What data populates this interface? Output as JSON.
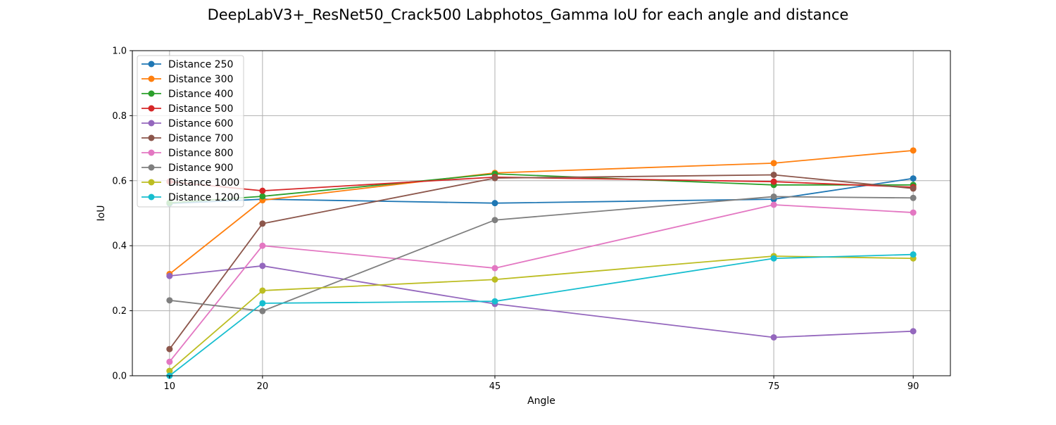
{
  "chart_data": {
    "type": "line",
    "title": "DeepLabV3+_ResNet50_Crack500 Labphotos_Gamma IoU for each angle and distance",
    "xlabel": "Angle",
    "ylabel": "IoU",
    "x": [
      10,
      20,
      45,
      75,
      90
    ],
    "xlim": [
      6,
      94
    ],
    "ylim": [
      0.0,
      1.0
    ],
    "yticks": [
      0.0,
      0.2,
      0.4,
      0.6,
      0.8,
      1.0
    ],
    "ytick_labels": [
      "0.0",
      "0.2",
      "0.4",
      "0.6",
      "0.8",
      "1.0"
    ],
    "xtick_labels": [
      "10",
      "20",
      "45",
      "75",
      "90"
    ],
    "grid": true,
    "legend_position": "top-left",
    "series": [
      {
        "name": "Distance 250",
        "color": "#1f77b4",
        "values": [
          0.53,
          0.543,
          0.531,
          0.543,
          0.607
        ]
      },
      {
        "name": "Distance 300",
        "color": "#ff7f0e",
        "values": [
          0.313,
          0.54,
          0.624,
          0.654,
          0.693
        ]
      },
      {
        "name": "Distance 400",
        "color": "#2ca02c",
        "values": [
          0.532,
          0.552,
          0.621,
          0.587,
          0.587
        ]
      },
      {
        "name": "Distance 500",
        "color": "#d62728",
        "values": [
          0.597,
          0.569,
          0.611,
          0.597,
          0.58
        ]
      },
      {
        "name": "Distance 600",
        "color": "#9467bd",
        "values": [
          0.307,
          0.338,
          0.221,
          0.118,
          0.137
        ]
      },
      {
        "name": "Distance 700",
        "color": "#8c564b",
        "values": [
          0.082,
          0.468,
          0.608,
          0.618,
          0.576
        ]
      },
      {
        "name": "Distance 800",
        "color": "#e377c2",
        "values": [
          0.043,
          0.4,
          0.331,
          0.526,
          0.502
        ]
      },
      {
        "name": "Distance 900",
        "color": "#7f7f7f",
        "values": [
          0.232,
          0.199,
          0.479,
          0.551,
          0.547
        ]
      },
      {
        "name": "Distance 1000",
        "color": "#bcbd22",
        "values": [
          0.015,
          0.262,
          0.296,
          0.368,
          0.361
        ]
      },
      {
        "name": "Distance 1200",
        "color": "#17becf",
        "values": [
          0.0,
          0.223,
          0.229,
          0.361,
          0.373
        ]
      }
    ]
  }
}
